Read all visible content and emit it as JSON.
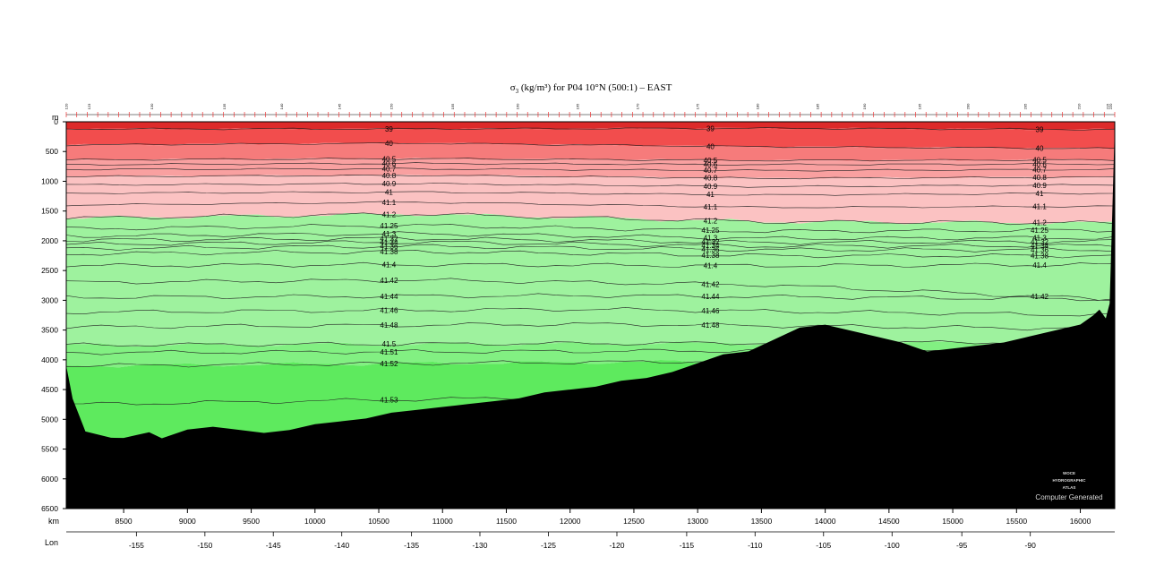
{
  "chart_data": {
    "type": "heatmap",
    "title": "σ₃ (kg/m³) for P04 10°N (500:1) – EAST",
    "title_parts": {
      "sym": "σ",
      "sub": "3",
      "rest": " (kg/m³) for P04 10°N (500:1) – EAST"
    },
    "y_unit": "m",
    "x_unit": "km",
    "lon_label": "Lon",
    "ylim": [
      0,
      6500
    ],
    "y_ticks": [
      0,
      500,
      1000,
      1500,
      2000,
      2500,
      3000,
      3500,
      4000,
      4500,
      5000,
      5500,
      6000,
      6500
    ],
    "xlim": [
      8050,
      16270
    ],
    "x_ticks": [
      8500,
      9000,
      9500,
      10000,
      10500,
      11000,
      11500,
      12000,
      12500,
      13000,
      13500,
      14000,
      14500,
      15000,
      15500,
      16000
    ],
    "lon_ticks": [
      {
        "lon": -155,
        "km": 8600
      },
      {
        "lon": -150,
        "km": 9137
      },
      {
        "lon": -145,
        "km": 9673
      },
      {
        "lon": -140,
        "km": 10210
      },
      {
        "lon": -135,
        "km": 10757
      },
      {
        "lon": -130,
        "km": 11293
      },
      {
        "lon": -125,
        "km": 11830
      },
      {
        "lon": -120,
        "km": 12367
      },
      {
        "lon": -115,
        "km": 12914
      },
      {
        "lon": -110,
        "km": 13450
      },
      {
        "lon": -105,
        "km": 13987
      },
      {
        "lon": -100,
        "km": 14524
      },
      {
        "lon": -95,
        "km": 15071
      },
      {
        "lon": -90,
        "km": 15608
      }
    ],
    "stations_labeled": [
      {
        "id": "120",
        "km": 8060
      },
      {
        "id": "123",
        "km": 8240
      },
      {
        "id": "130",
        "km": 8730
      },
      {
        "id": "135",
        "km": 9300
      },
      {
        "id": "140",
        "km": 9750
      },
      {
        "id": "145",
        "km": 10200
      },
      {
        "id": "150",
        "km": 10610
      },
      {
        "id": "155",
        "km": 11090
      },
      {
        "id": "160",
        "km": 11600
      },
      {
        "id": "165",
        "km": 12070
      },
      {
        "id": "170",
        "km": 12540
      },
      {
        "id": "175",
        "km": 13010
      },
      {
        "id": "180",
        "km": 13480
      },
      {
        "id": "185",
        "km": 13950
      },
      {
        "id": "190",
        "km": 14320
      },
      {
        "id": "195",
        "km": 14750
      },
      {
        "id": "200",
        "km": 15130
      },
      {
        "id": "205",
        "km": 15580
      },
      {
        "id": "210",
        "km": 16000
      },
      {
        "id": "215",
        "km": 16225
      },
      {
        "id": "220",
        "km": 16250
      }
    ],
    "fill_bands": [
      {
        "from": 0,
        "to": 39,
        "color": "#dd2a2a"
      },
      {
        "from": 39,
        "to": 40,
        "color": "#f24d4d"
      },
      {
        "from": 40,
        "to": 40.5,
        "color": "#f67b7b"
      },
      {
        "from": 40.5,
        "to": 40.8,
        "color": "#f9a0a0"
      },
      {
        "from": 40.8,
        "to": 41.2,
        "color": "#fbc2c2"
      },
      {
        "from": 41.2,
        "to": 41.5,
        "color": "#9ef29e"
      },
      {
        "from": 41.5,
        "to": 41.52,
        "color": "#82f082"
      },
      {
        "from": 41.52,
        "to": 41.6,
        "color": "#5eea5e"
      }
    ],
    "contour_levels": [
      39,
      40,
      40.5,
      40.6,
      40.7,
      40.8,
      40.9,
      41,
      41.1,
      41.2,
      41.25,
      41.3,
      41.32,
      41.34,
      41.36,
      41.38,
      41.4,
      41.42,
      41.44,
      41.46,
      41.48,
      41.5,
      41.51,
      41.52,
      41.53
    ],
    "contour_depths_m": [
      {
        "level": 39,
        "d": [
          120,
          120,
          110,
          130
        ]
      },
      {
        "level": 40,
        "d": [
          390,
          360,
          420,
          450
        ]
      },
      {
        "level": 40.5,
        "d": [
          640,
          620,
          650,
          640
        ]
      },
      {
        "level": 40.6,
        "d": [
          720,
          700,
          720,
          710
        ]
      },
      {
        "level": 40.7,
        "d": [
          800,
          790,
          820,
          800
        ]
      },
      {
        "level": 40.8,
        "d": [
          920,
          900,
          950,
          930
        ]
      },
      {
        "level": 40.9,
        "d": [
          1060,
          1040,
          1090,
          1060
        ]
      },
      {
        "level": 41,
        "d": [
          1200,
          1180,
          1230,
          1200
        ]
      },
      {
        "level": 41.1,
        "d": [
          1400,
          1350,
          1440,
          1420
        ]
      },
      {
        "level": 41.2,
        "d": [
          1620,
          1550,
          1680,
          1700
        ]
      },
      {
        "level": 41.25,
        "d": [
          1800,
          1740,
          1840,
          1820
        ]
      },
      {
        "level": 41.3,
        "d": [
          1920,
          1880,
          1960,
          1950
        ]
      },
      {
        "level": 41.32,
        "d": [
          1990,
          1960,
          2030,
          2010
        ]
      },
      {
        "level": 41.34,
        "d": [
          2060,
          2020,
          2090,
          2080
        ]
      },
      {
        "level": 41.36,
        "d": [
          2130,
          2090,
          2150,
          2150
        ]
      },
      {
        "level": 41.38,
        "d": [
          2220,
          2180,
          2250,
          2250
        ]
      },
      {
        "level": 41.4,
        "d": [
          2420,
          2400,
          2420,
          2400
        ]
      },
      {
        "level": 41.42,
        "d": [
          2700,
          2660,
          2740,
          2990
        ]
      },
      {
        "level": 41.44,
        "d": [
          2950,
          2920,
          2980
        ]
      },
      {
        "level": 41.46,
        "d": [
          3200,
          3150,
          3250
        ]
      },
      {
        "level": 41.48,
        "d": [
          3450,
          3400,
          3480
        ]
      },
      {
        "level": 41.5,
        "d": [
          3750,
          3700
        ]
      },
      {
        "level": 41.51,
        "d": [
          3880,
          3830
        ]
      },
      {
        "level": 41.52,
        "d": [
          4100,
          3980
        ]
      },
      {
        "level": 41.53,
        "d": [
          4750,
          4500
        ]
      }
    ],
    "bathymetry_km_m": [
      [
        8050,
        4100
      ],
      [
        8100,
        4650
      ],
      [
        8200,
        5200
      ],
      [
        8300,
        5250
      ],
      [
        8400,
        5300
      ],
      [
        8500,
        5300
      ],
      [
        8600,
        5250
      ],
      [
        8700,
        5200
      ],
      [
        8800,
        5300
      ],
      [
        9000,
        5150
      ],
      [
        9200,
        5100
      ],
      [
        9400,
        5150
      ],
      [
        9600,
        5200
      ],
      [
        9800,
        5150
      ],
      [
        10000,
        5050
      ],
      [
        10200,
        5000
      ],
      [
        10400,
        4950
      ],
      [
        10600,
        4850
      ],
      [
        10800,
        4800
      ],
      [
        11000,
        4750
      ],
      [
        11200,
        4700
      ],
      [
        11400,
        4650
      ],
      [
        11600,
        4600
      ],
      [
        11800,
        4500
      ],
      [
        12000,
        4450
      ],
      [
        12200,
        4400
      ],
      [
        12400,
        4300
      ],
      [
        12600,
        4250
      ],
      [
        12800,
        4150
      ],
      [
        13000,
        4000
      ],
      [
        13200,
        3850
      ],
      [
        13400,
        3800
      ],
      [
        13500,
        3700
      ],
      [
        13700,
        3500
      ],
      [
        13800,
        3400
      ],
      [
        14000,
        3350
      ],
      [
        14200,
        3450
      ],
      [
        14400,
        3550
      ],
      [
        14600,
        3650
      ],
      [
        14800,
        3800
      ],
      [
        15000,
        3750
      ],
      [
        15200,
        3700
      ],
      [
        15400,
        3650
      ],
      [
        15600,
        3550
      ],
      [
        15800,
        3450
      ],
      [
        16000,
        3350
      ],
      [
        16100,
        3200
      ],
      [
        16150,
        3100
      ],
      [
        16200,
        3250
      ],
      [
        16230,
        3000
      ],
      [
        16250,
        1500
      ],
      [
        16270,
        0
      ]
    ]
  },
  "watermark": {
    "line1": "WOCE",
    "line2": "HYDROGRAPHIC",
    "line3": "ATLAS",
    "line4": "Computer Generated"
  }
}
